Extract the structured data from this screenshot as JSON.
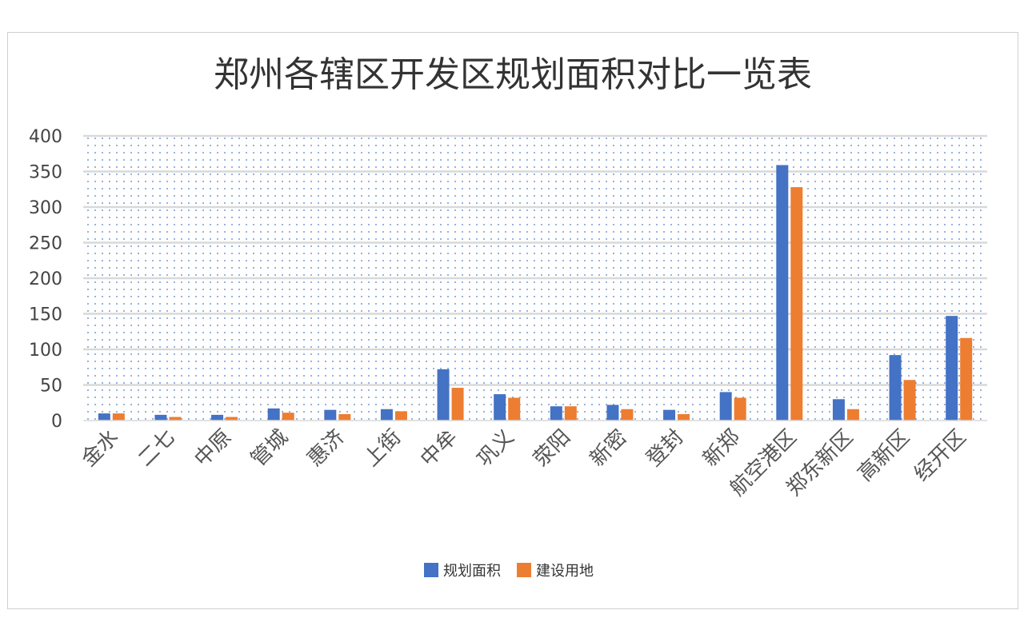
{
  "chart_data": {
    "type": "bar",
    "title": "郑州各辖区开发区规划面积对比一览表",
    "categories": [
      "金水",
      "二七",
      "中原",
      "管城",
      "惠济",
      "上街",
      "中牟",
      "巩义",
      "荥阳",
      "新密",
      "登封",
      "新郑",
      "航空港区",
      "郑东新区",
      "高新区",
      "经开区"
    ],
    "series": [
      {
        "name": "规划面积",
        "color": "#4472c4",
        "values": [
          10,
          8,
          8,
          17,
          15,
          16,
          72,
          37,
          20,
          22,
          15,
          40,
          359,
          30,
          92,
          147
        ]
      },
      {
        "name": "建设用地",
        "color": "#ed7d31",
        "values": [
          10,
          5,
          5,
          11,
          9,
          13,
          46,
          32,
          20,
          16,
          9,
          32,
          328,
          16,
          57,
          116
        ]
      }
    ],
    "ylim": [
      0,
      400
    ],
    "yticks": [
      0,
      50,
      100,
      150,
      200,
      250,
      300,
      350,
      400
    ],
    "grid": true,
    "legend_position": "bottom"
  }
}
